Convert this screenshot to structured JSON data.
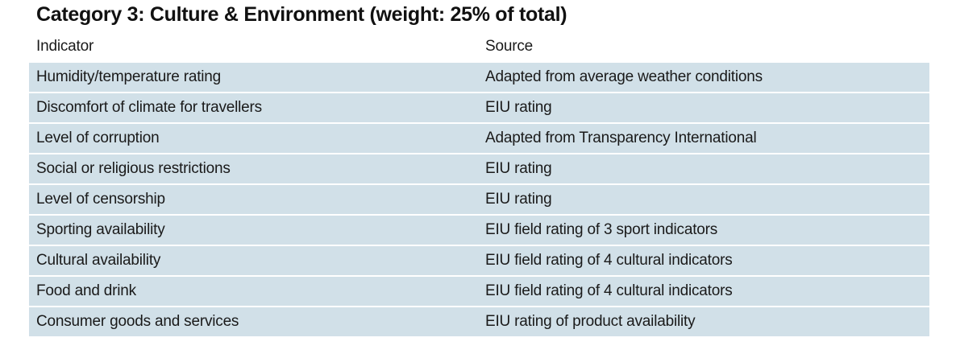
{
  "title": "Category 3: Culture & Environment (weight: 25% of total)",
  "table": {
    "headers": {
      "indicator": "Indicator",
      "source": "Source"
    },
    "rows": [
      {
        "indicator": "Humidity/temperature rating",
        "source": "Adapted from average weather conditions"
      },
      {
        "indicator": "Discomfort of climate for travellers",
        "source": "EIU rating"
      },
      {
        "indicator": "Level of corruption",
        "source": "Adapted from Transparency International"
      },
      {
        "indicator": "Social or religious restrictions",
        "source": "EIU rating"
      },
      {
        "indicator": "Level of censorship",
        "source": "EIU rating"
      },
      {
        "indicator": "Sporting availability",
        "source": "EIU field rating of 3 sport indicators"
      },
      {
        "indicator": "Cultural availability",
        "source": "EIU field rating of 4 cultural indicators"
      },
      {
        "indicator": "Food and drink",
        "source": "EIU field rating of 4 cultural indicators"
      },
      {
        "indicator": "Consumer goods and services",
        "source": "EIU rating of product availability"
      }
    ]
  },
  "colors": {
    "row_fill": "#d1e0e8",
    "text": "#1a1a1a"
  }
}
